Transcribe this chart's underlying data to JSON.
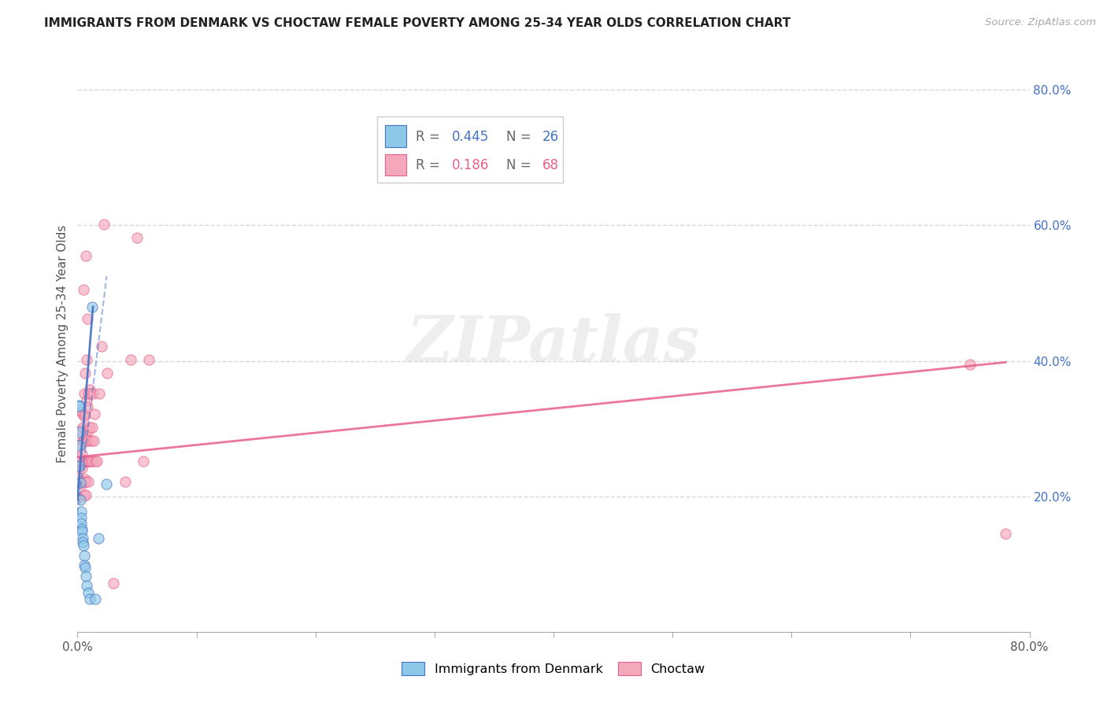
{
  "title": "IMMIGRANTS FROM DENMARK VS CHOCTAW FEMALE POVERTY AMONG 25-34 YEAR OLDS CORRELATION CHART",
  "source": "Source: ZipAtlas.com",
  "ylabel": "Female Poverty Among 25-34 Year Olds",
  "xlim": [
    0.0,
    0.8
  ],
  "ylim": [
    0.0,
    0.85
  ],
  "xticks": [
    0.0,
    0.1,
    0.2,
    0.3,
    0.4,
    0.5,
    0.6,
    0.7,
    0.8
  ],
  "ytick_vals_right": [
    0.2,
    0.4,
    0.6,
    0.8
  ],
  "color_denmark": "#8EC8E8",
  "color_choctaw": "#F5A8BC",
  "color_denmark_line": "#4472C4",
  "color_choctaw_line": "#E8608A",
  "watermark": "ZIPatlas",
  "denmark_points": [
    [
      0.0008,
      0.335
    ],
    [
      0.0012,
      0.333
    ],
    [
      0.0015,
      0.295
    ],
    [
      0.0018,
      0.275
    ],
    [
      0.002,
      0.245
    ],
    [
      0.0022,
      0.22
    ],
    [
      0.0025,
      0.195
    ],
    [
      0.0028,
      0.178
    ],
    [
      0.003,
      0.168
    ],
    [
      0.0033,
      0.16
    ],
    [
      0.0035,
      0.152
    ],
    [
      0.0038,
      0.148
    ],
    [
      0.0042,
      0.138
    ],
    [
      0.0045,
      0.132
    ],
    [
      0.005,
      0.128
    ],
    [
      0.0055,
      0.112
    ],
    [
      0.0058,
      0.098
    ],
    [
      0.0062,
      0.095
    ],
    [
      0.0068,
      0.082
    ],
    [
      0.0075,
      0.068
    ],
    [
      0.009,
      0.058
    ],
    [
      0.0105,
      0.048
    ],
    [
      0.0125,
      0.48
    ],
    [
      0.0148,
      0.048
    ],
    [
      0.0178,
      0.138
    ],
    [
      0.0245,
      0.218
    ]
  ],
  "choctaw_points": [
    [
      0.0008,
      0.225
    ],
    [
      0.001,
      0.198
    ],
    [
      0.0015,
      0.285
    ],
    [
      0.0018,
      0.258
    ],
    [
      0.002,
      0.242
    ],
    [
      0.0022,
      0.22
    ],
    [
      0.0028,
      0.325
    ],
    [
      0.003,
      0.298
    ],
    [
      0.0032,
      0.278
    ],
    [
      0.0034,
      0.262
    ],
    [
      0.0036,
      0.248
    ],
    [
      0.0038,
      0.242
    ],
    [
      0.004,
      0.218
    ],
    [
      0.0042,
      0.322
    ],
    [
      0.0045,
      0.302
    ],
    [
      0.0048,
      0.282
    ],
    [
      0.005,
      0.252
    ],
    [
      0.0052,
      0.222
    ],
    [
      0.0055,
      0.202
    ],
    [
      0.0052,
      0.505
    ],
    [
      0.0055,
      0.352
    ],
    [
      0.0058,
      0.318
    ],
    [
      0.006,
      0.282
    ],
    [
      0.0062,
      0.252
    ],
    [
      0.0065,
      0.225
    ],
    [
      0.0068,
      0.202
    ],
    [
      0.0062,
      0.382
    ],
    [
      0.0065,
      0.322
    ],
    [
      0.0068,
      0.282
    ],
    [
      0.007,
      0.252
    ],
    [
      0.0072,
      0.222
    ],
    [
      0.0072,
      0.555
    ],
    [
      0.0075,
      0.402
    ],
    [
      0.0078,
      0.342
    ],
    [
      0.008,
      0.285
    ],
    [
      0.0082,
      0.252
    ],
    [
      0.0082,
      0.462
    ],
    [
      0.0085,
      0.332
    ],
    [
      0.0088,
      0.282
    ],
    [
      0.009,
      0.252
    ],
    [
      0.0092,
      0.222
    ],
    [
      0.0092,
      0.352
    ],
    [
      0.0095,
      0.298
    ],
    [
      0.0098,
      0.252
    ],
    [
      0.01,
      0.358
    ],
    [
      0.0105,
      0.302
    ],
    [
      0.0108,
      0.252
    ],
    [
      0.011,
      0.352
    ],
    [
      0.0115,
      0.282
    ],
    [
      0.012,
      0.302
    ],
    [
      0.0125,
      0.252
    ],
    [
      0.013,
      0.352
    ],
    [
      0.0135,
      0.282
    ],
    [
      0.014,
      0.322
    ],
    [
      0.015,
      0.252
    ],
    [
      0.016,
      0.252
    ],
    [
      0.018,
      0.352
    ],
    [
      0.02,
      0.422
    ],
    [
      0.0225,
      0.602
    ],
    [
      0.025,
      0.382
    ],
    [
      0.03,
      0.072
    ],
    [
      0.04,
      0.222
    ],
    [
      0.045,
      0.402
    ],
    [
      0.05,
      0.582
    ],
    [
      0.055,
      0.252
    ],
    [
      0.06,
      0.402
    ],
    [
      0.75,
      0.395
    ],
    [
      0.78,
      0.145
    ]
  ],
  "denmark_trendline": [
    [
      0.0,
      0.175
    ],
    [
      0.0245,
      0.525
    ]
  ],
  "choctaw_trendline": [
    [
      0.0,
      0.258
    ],
    [
      0.78,
      0.398
    ]
  ],
  "background_color": "#ffffff",
  "grid_color": "#d8d8d8",
  "title_color": "#222222",
  "axis_label_color": "#555555",
  "right_tick_color": "#4472C4",
  "marker_size": 90,
  "alpha": 0.65
}
